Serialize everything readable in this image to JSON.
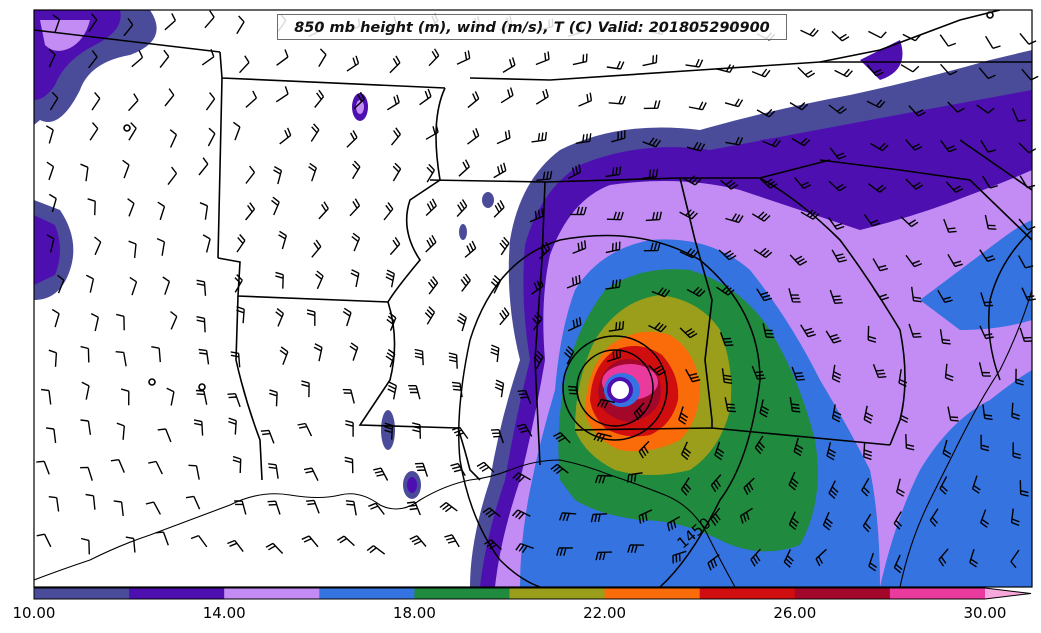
{
  "title": "850 mb height (m), wind (m/s), T (C) Valid: 201805290900",
  "contour_labels": [
    "1450"
  ],
  "colorbar": {
    "colors": [
      "#4a4c9a",
      "#4e0fb0",
      "#c38cf4",
      "#3573e0",
      "#208a3e",
      "#9b9e1a",
      "#fa6b09",
      "#d00d0f",
      "#a3082a",
      "#ea3a9e",
      "#f7a8dc"
    ],
    "ticks": [
      "10.00",
      "14.00",
      "18.00",
      "22.00",
      "26.00",
      "30.00"
    ]
  },
  "colors": {
    "ocean_fill": "#3573e0",
    "land_bg": "#ffffff",
    "border": "#000000"
  }
}
